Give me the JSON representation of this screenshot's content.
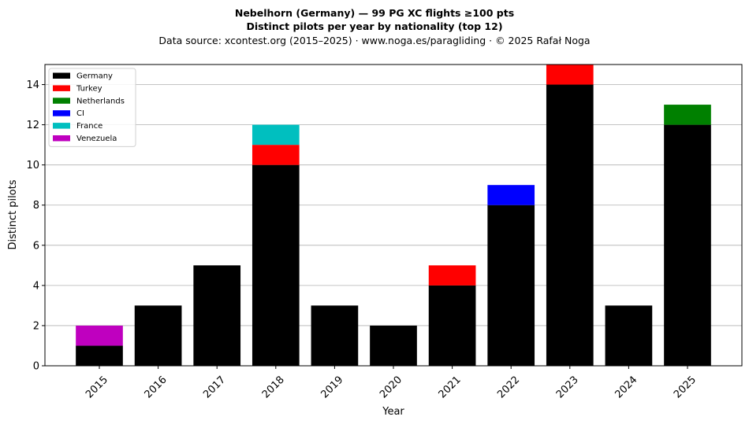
{
  "chart_data": {
    "type": "bar",
    "stacked": true,
    "title": "Nebelhorn (Germany)  —  99 PG XC flights ≥100 pts",
    "title_line2": "Distinct pilots per year by nationality (top 12)",
    "subtitle": "Data source: xcontest.org (2015–2025)  ·  www.noga.es/paragliding  ·  © 2025 Rafał Noga",
    "xlabel": "Year",
    "ylabel": "Distinct pilots",
    "ylim": [
      0,
      15
    ],
    "yticks": [
      0,
      2,
      4,
      6,
      8,
      10,
      12,
      14
    ],
    "grid": "y",
    "legend_position": "top-left",
    "categories": [
      "2015",
      "2016",
      "2017",
      "2018",
      "2019",
      "2020",
      "2021",
      "2022",
      "2023",
      "2024",
      "2025"
    ],
    "series": [
      {
        "name": "Germany",
        "color": "#000000",
        "values": [
          1,
          3,
          5,
          10,
          3,
          2,
          4,
          8,
          14,
          3,
          12
        ]
      },
      {
        "name": "Turkey",
        "color": "#ff0000",
        "values": [
          0,
          0,
          0,
          1,
          0,
          0,
          1,
          0,
          1,
          0,
          0
        ]
      },
      {
        "name": "Netherlands",
        "color": "#008000",
        "values": [
          0,
          0,
          0,
          0,
          0,
          0,
          0,
          0,
          0,
          0,
          1
        ]
      },
      {
        "name": "CI",
        "color": "#0000ff",
        "values": [
          0,
          0,
          0,
          0,
          0,
          0,
          0,
          1,
          0,
          0,
          0
        ]
      },
      {
        "name": "France",
        "color": "#00bfbf",
        "values": [
          0,
          0,
          0,
          1,
          0,
          0,
          0,
          0,
          0,
          0,
          0
        ]
      },
      {
        "name": "Venezuela",
        "color": "#bf00bf",
        "values": [
          1,
          0,
          0,
          0,
          0,
          0,
          0,
          0,
          0,
          0,
          0
        ]
      }
    ]
  }
}
